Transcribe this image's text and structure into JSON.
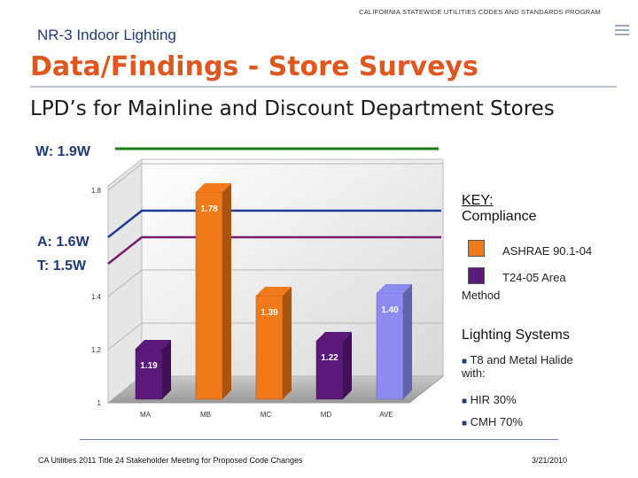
{
  "header": {
    "program": "CALIFORNIA STATEWIDE UTILITIES CODES AND STANDARDS PROGRAM",
    "subtitle": "NR-3 Indoor Lighting",
    "title": "Data/Findings - Store Surveys",
    "heading": "LPD’s for Mainline and Discount Department Stores"
  },
  "reference_lines": {
    "w": "W: 1.9W",
    "a": "A: 1.6W",
    "t": "T: 1.5W"
  },
  "chart_data": {
    "type": "bar",
    "categories": [
      "MA",
      "MB",
      "MC",
      "MD",
      "AVE"
    ],
    "values": [
      1.19,
      1.78,
      1.39,
      1.22,
      1.4
    ],
    "value_labels": [
      "1.19",
      "1.78",
      "1.39",
      "1.22",
      "1.40"
    ],
    "bar_colors": [
      "#5b1a7a",
      "#f07a1a",
      "#f07a1a",
      "#5b1a7a",
      "#8c8cf0"
    ],
    "ylim": [
      1,
      1.8
    ],
    "yticks": [
      1,
      1.2,
      1.4,
      1.8
    ],
    "ytick_labels": [
      "1",
      "1.2",
      "1.4",
      "1.8"
    ],
    "grid": true,
    "reference_lines": [
      {
        "label": "W: 1.9W",
        "value": 1.9,
        "color": "#1a7a1a"
      },
      {
        "label": "A: 1.6W",
        "value": 1.6,
        "color": "#1f3b9a"
      },
      {
        "label": "T: 1.5W",
        "value": 1.5,
        "color": "#7a1a6a"
      }
    ]
  },
  "key": {
    "title": "KEY",
    "title_suffix": ":",
    "subtitle": "Compliance",
    "items": [
      {
        "label": "ASHRAE 90.1-04",
        "color": "#f07a1a"
      },
      {
        "label_line1": "T24-05 Area",
        "label_line2": "Method",
        "color": "#5b1a7a"
      }
    ]
  },
  "lighting": {
    "heading": "Lighting Systems",
    "bullets": [
      {
        "line1": "T8 and Metal Halide",
        "line2": "with:"
      },
      {
        "line1": "HIR 30%"
      },
      {
        "line1": "CMH 70%"
      }
    ]
  },
  "footer": {
    "left": "CA Utilities 2011 Title 24 Stakeholder Meeting for Proposed Code Changes",
    "right": "3/21/2010"
  }
}
